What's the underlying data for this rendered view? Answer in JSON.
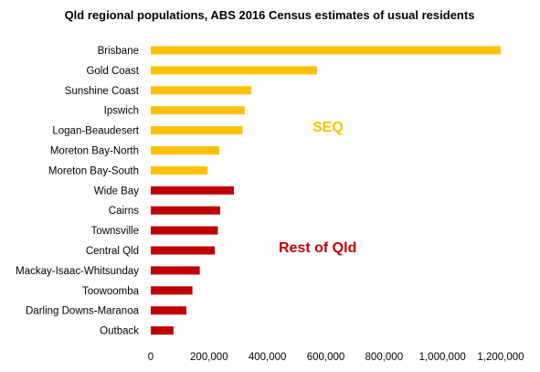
{
  "chart_data": {
    "type": "bar",
    "orientation": "horizontal",
    "title": "Qld regional populations, ABS 2016  Census estimates of usual residents",
    "xlabel": "",
    "ylabel": "",
    "xlim": [
      0,
      1200000
    ],
    "x_ticks": [
      0,
      200000,
      400000,
      600000,
      800000,
      1000000,
      1200000
    ],
    "x_tick_labels": [
      "0",
      "200,000",
      "400,000",
      "600,000",
      "800,000",
      "1,000,000",
      "1,200,000"
    ],
    "grid": false,
    "categories": [
      "Brisbane",
      "Gold Coast",
      "Sunshine Coast",
      "Ipswich",
      "Logan-Beaudesert",
      "Moreton Bay-North",
      "Moreton Bay-South",
      "Wide Bay",
      "Cairns",
      "Townsville",
      "Central Qld",
      "Mackay-Isaac-Whitsunday",
      "Toowoomba",
      "Darling Downs-Maranoa",
      "Outback"
    ],
    "values": [
      1200000,
      570000,
      345000,
      322000,
      315000,
      235000,
      195000,
      285000,
      238000,
      230000,
      220000,
      168000,
      143000,
      122000,
      78000
    ],
    "groups": [
      {
        "name": "SEQ",
        "color": "#FFC000",
        "members": [
          "Brisbane",
          "Gold Coast",
          "Sunshine Coast",
          "Ipswich",
          "Logan-Beaudesert",
          "Moreton Bay-North",
          "Moreton Bay-South"
        ]
      },
      {
        "name": "Rest of Qld",
        "color": "#C00000",
        "members": [
          "Wide Bay",
          "Cairns",
          "Townsville",
          "Central Qld",
          "Mackay-Isaac-Whitsunday",
          "Toowoomba",
          "Darling Downs-Maranoa",
          "Outback"
        ]
      }
    ],
    "annotations": [
      {
        "text": "SEQ",
        "color": "#FFC000"
      },
      {
        "text": "Rest of Qld",
        "color": "#C00000"
      }
    ]
  }
}
